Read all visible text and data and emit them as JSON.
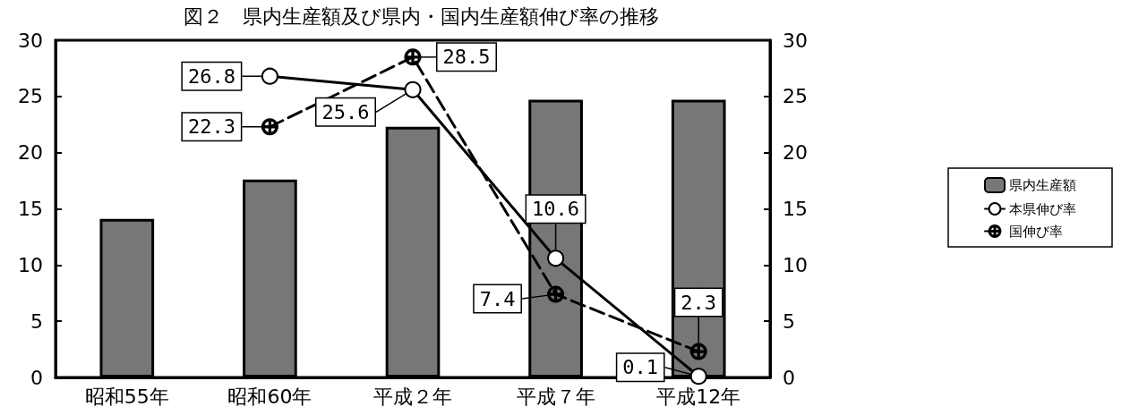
{
  "chart_data": {
    "type": "bar",
    "title": "図２　県内生産額及び県内・国内生産額伸び率の推移",
    "categories": [
      "昭和55年",
      "昭和60年",
      "平成２年",
      "平成７年",
      "平成12年"
    ],
    "series": [
      {
        "name": "県内生産額",
        "color": "#777777",
        "values": [
          14.1,
          17.6,
          22.3,
          24.7,
          24.7
        ]
      },
      {
        "name": "本県伸び率",
        "type": "line",
        "color": "#000000",
        "marker": "circle",
        "line_style": "solid",
        "data_labels": true,
        "values": [
          null,
          26.8,
          25.6,
          10.6,
          0.1
        ]
      },
      {
        "name": "国伸び率",
        "type": "line",
        "color": "#000000",
        "marker": "cross",
        "line_style": "dashed",
        "data_labels": true,
        "values": [
          null,
          22.3,
          28.5,
          7.4,
          2.3
        ]
      }
    ],
    "ylim": [
      0,
      30
    ],
    "yticks": [
      0,
      5,
      10,
      15,
      20,
      25,
      30
    ],
    "y2lim": [
      0,
      30
    ],
    "y2ticks": [
      0,
      5,
      10,
      15,
      20,
      25,
      30
    ],
    "grid": false,
    "legend": "right"
  }
}
